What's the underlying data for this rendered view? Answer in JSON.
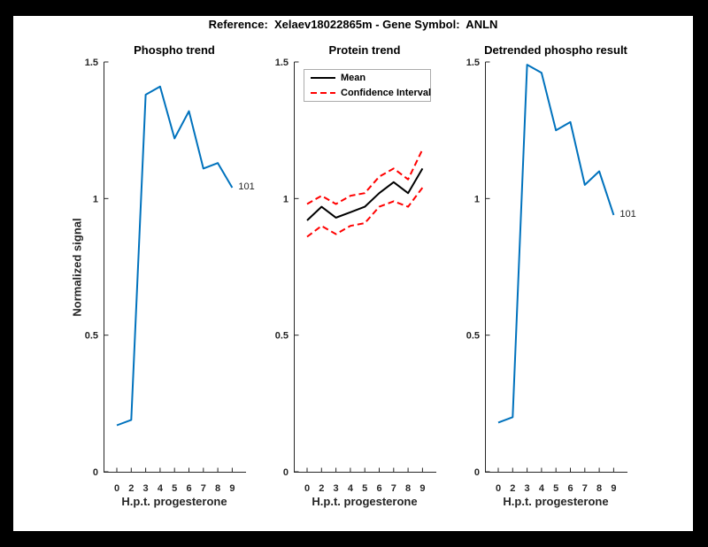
{
  "window": {
    "background": "#000000",
    "canvas_background": "#ffffff"
  },
  "figure_title": "Reference:  Xelaev18022865m - Gene Symbol:  ANLN",
  "shared_axes": {
    "xlabel": "H.p.t. progesterone",
    "ylabel": "Normalized signal",
    "x_tick_labels": [
      "0",
      "2",
      "3",
      "4",
      "5",
      "6",
      "7",
      "8",
      "9"
    ],
    "y_tick_labels": [
      "0",
      "0.5",
      "1",
      "1.5"
    ],
    "y_tick_values": [
      0,
      0.5,
      1,
      1.5
    ],
    "ylim": [
      0,
      1.5
    ]
  },
  "colors": {
    "line_blue": "#0072BD",
    "mean_black": "#000000",
    "ci_red": "#ff0000",
    "axis": "#262626",
    "legend_border": "#ababab"
  },
  "legend_labels": {
    "mean": "Mean",
    "ci": "Confidence Interval"
  },
  "annotation_label": "101",
  "chart_data": [
    {
      "type": "line",
      "title": "Phospho trend",
      "xlabel": "H.p.t. progesterone",
      "ylabel": "Normalized signal",
      "categories": [
        "0",
        "2",
        "3",
        "4",
        "5",
        "6",
        "7",
        "8",
        "9"
      ],
      "ylim": [
        0,
        1.5
      ],
      "grid": false,
      "series": [
        {
          "name": "phospho signal",
          "color": "#0072BD",
          "style": "solid",
          "values": [
            0.17,
            0.19,
            1.38,
            1.41,
            1.22,
            1.32,
            1.11,
            1.13,
            1.04
          ]
        }
      ],
      "end_annotation": "101"
    },
    {
      "type": "line",
      "title": "Protein trend",
      "xlabel": "H.p.t. progesterone",
      "categories": [
        "0",
        "2",
        "3",
        "4",
        "5",
        "6",
        "7",
        "8",
        "9"
      ],
      "ylim": [
        0,
        1.5
      ],
      "grid": false,
      "legend_position": "north",
      "legend_entries": [
        "Mean",
        "Confidence Interval"
      ],
      "series": [
        {
          "name": "Mean",
          "color": "#000000",
          "style": "solid",
          "values": [
            0.92,
            0.97,
            0.93,
            0.95,
            0.97,
            1.02,
            1.06,
            1.02,
            1.11
          ]
        },
        {
          "name": "Confidence Interval upper",
          "color": "#ff0000",
          "style": "dashed",
          "values": [
            0.98,
            1.01,
            0.98,
            1.01,
            1.02,
            1.08,
            1.11,
            1.07,
            1.18
          ]
        },
        {
          "name": "Confidence Interval lower",
          "color": "#ff0000",
          "style": "dashed",
          "values": [
            0.86,
            0.9,
            0.87,
            0.9,
            0.91,
            0.97,
            0.99,
            0.97,
            1.04
          ]
        }
      ]
    },
    {
      "type": "line",
      "title": "Detrended phospho result",
      "xlabel": "H.p.t. progesterone",
      "categories": [
        "0",
        "2",
        "3",
        "4",
        "5",
        "6",
        "7",
        "8",
        "9"
      ],
      "ylim": [
        0,
        1.5
      ],
      "grid": false,
      "series": [
        {
          "name": "detrended phospho signal",
          "color": "#0072BD",
          "style": "solid",
          "values": [
            0.18,
            0.2,
            1.49,
            1.46,
            1.25,
            1.28,
            1.05,
            1.1,
            0.94
          ]
        }
      ],
      "end_annotation": "101"
    }
  ]
}
